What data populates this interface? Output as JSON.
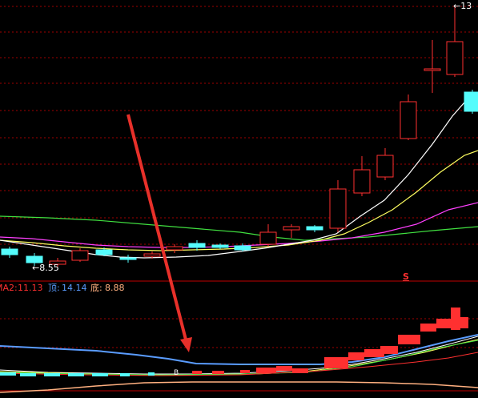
{
  "main_chart": {
    "high_marker": "13",
    "low_marker": "8.55",
    "signal_letter": "S"
  },
  "indicator_bar": {
    "ma2_label": "MA2:",
    "ma2_value": "11.13",
    "top_label": "顶:",
    "top_value": "14.14",
    "bottom_label": "底:",
    "bottom_value": "8.88"
  },
  "sub_chart": {
    "signal_letter": "B"
  },
  "colors": {
    "up": "#ff3030",
    "down": "#54fcfc",
    "grid": "#a00000",
    "ma_white": "#ffffff",
    "ma_yellow": "#ffff60",
    "ma_magenta": "#ff40ff",
    "ma_green": "#40e040",
    "top_line": "#5a9cff",
    "arrow": "#e8302a"
  }
}
